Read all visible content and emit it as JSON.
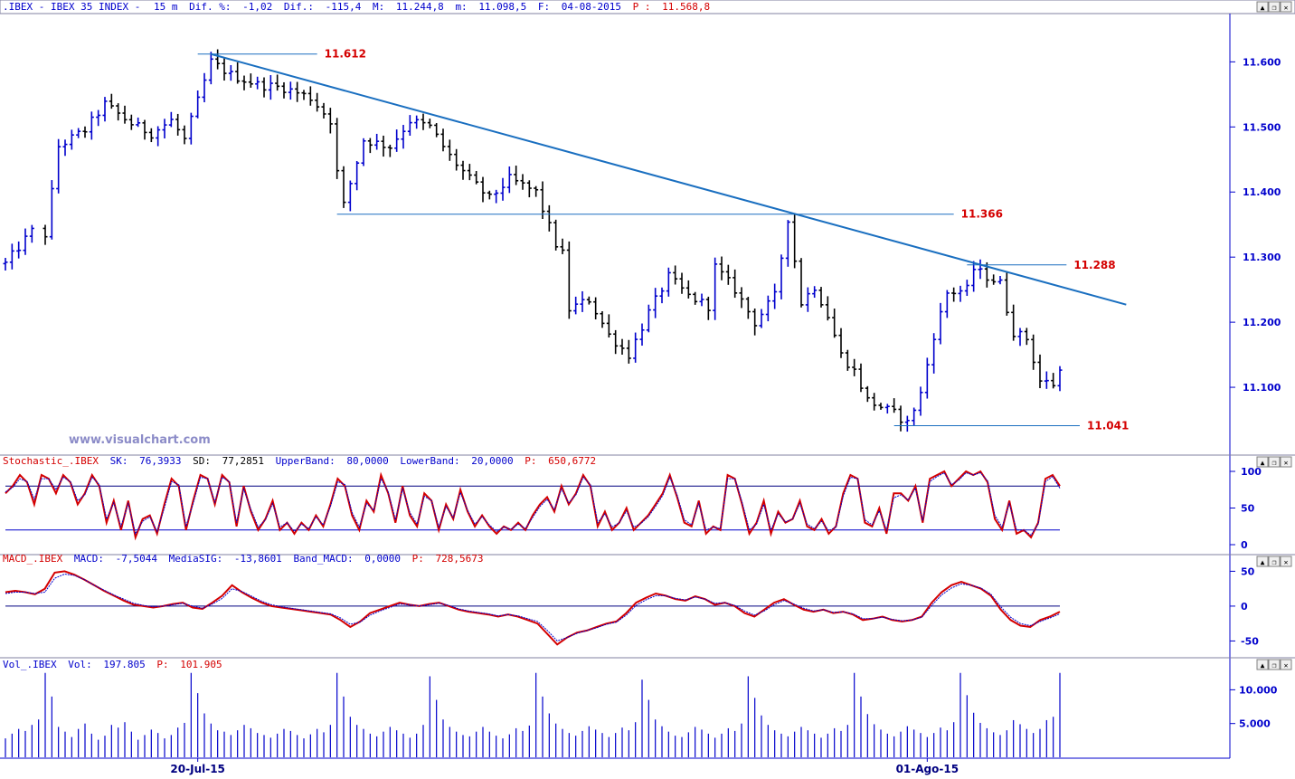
{
  "header": {
    "symbol": ".IBEX",
    "name": "IBEX 35 INDEX",
    "interval": "15 m",
    "change_pct_label": "Dif. %:",
    "change_pct": "-1,02",
    "change_label": "Dif.:",
    "change": "-115,4",
    "max_label": "M:",
    "max": "11.244,8",
    "min_label": "m:",
    "min": "11.098,5",
    "date_label": "F:",
    "date": "04-08-2015",
    "price_label": "P :",
    "price": "11.568,8"
  },
  "window_buttons": {
    "up": "▲",
    "restore": "❐",
    "close": "✕"
  },
  "watermark": "www.visualchart.com",
  "colors": {
    "up_bar": "#0000cc",
    "down_bar": "#000000",
    "trendline": "#1a6fc0",
    "level_line": "#1a6fc0",
    "level_text": "#d40000",
    "axis": "#0000cc",
    "indicator_main": "#d40000",
    "indicator_signal": "#0000cc"
  },
  "chart_data": [
    {
      "type": "ohlc",
      "panel": "price",
      "title": "IBEX 35 INDEX 15 m",
      "ylim": [
        11000,
        11670
      ],
      "yticks": [
        11100,
        11200,
        11300,
        11400,
        11500,
        11600
      ],
      "ytick_labels": [
        "11.100",
        "11.200",
        "11.300",
        "11.400",
        "11.500",
        "11.600"
      ],
      "xtick_labels": [
        "20-Jul-15",
        "01-Ago-15"
      ],
      "xtick_bars": [
        29,
        139
      ],
      "bars_total": 160,
      "levels": [
        {
          "value": 11612,
          "label": "11.612",
          "from_bar": 29,
          "to_bar": 47
        },
        {
          "value": 11366,
          "label": "11.366",
          "from_bar": 50,
          "to_bar": 143
        },
        {
          "value": 11288,
          "label": "11.288",
          "from_bar": 145,
          "to_bar": 160
        },
        {
          "value": 11041,
          "label": "11.041",
          "from_bar": 134,
          "to_bar": 162
        }
      ],
      "trendline": {
        "from": {
          "bar": 31,
          "value": 11612
        },
        "to": {
          "bar": 169,
          "value": 11227
        }
      },
      "close_path": [
        [
          0,
          11290
        ],
        [
          4,
          11340
        ],
        [
          6,
          11335
        ],
        [
          7,
          11400
        ],
        [
          8,
          11470
        ],
        [
          12,
          11495
        ],
        [
          15,
          11535
        ],
        [
          19,
          11505
        ],
        [
          22,
          11490
        ],
        [
          25,
          11510
        ],
        [
          27,
          11480
        ],
        [
          29,
          11540
        ],
        [
          31,
          11600
        ],
        [
          34,
          11580
        ],
        [
          38,
          11565
        ],
        [
          42,
          11560
        ],
        [
          46,
          11545
        ],
        [
          49,
          11510
        ],
        [
          50,
          11430
        ],
        [
          51,
          11380
        ],
        [
          54,
          11480
        ],
        [
          58,
          11470
        ],
        [
          61,
          11510
        ],
        [
          64,
          11500
        ],
        [
          67,
          11455
        ],
        [
          70,
          11420
        ],
        [
          73,
          11390
        ],
        [
          76,
          11420
        ],
        [
          80,
          11400
        ],
        [
          83,
          11320
        ],
        [
          84,
          11305
        ],
        [
          85,
          11220
        ],
        [
          88,
          11235
        ],
        [
          91,
          11180
        ],
        [
          94,
          11150
        ],
        [
          97,
          11215
        ],
        [
          100,
          11270
        ],
        [
          103,
          11240
        ],
        [
          106,
          11225
        ],
        [
          107,
          11285
        ],
        [
          110,
          11250
        ],
        [
          113,
          11200
        ],
        [
          116,
          11240
        ],
        [
          118,
          11360
        ],
        [
          120,
          11230
        ],
        [
          122,
          11255
        ],
        [
          124,
          11210
        ],
        [
          126,
          11150
        ],
        [
          128,
          11125
        ],
        [
          130,
          11080
        ],
        [
          132,
          11070
        ],
        [
          134,
          11060
        ],
        [
          136,
          11045
        ],
        [
          138,
          11090
        ],
        [
          140,
          11180
        ],
        [
          142,
          11245
        ],
        [
          145,
          11250
        ],
        [
          146,
          11282
        ],
        [
          148,
          11270
        ],
        [
          150,
          11260
        ],
        [
          151,
          11220
        ],
        [
          152,
          11185
        ],
        [
          154,
          11175
        ],
        [
          156,
          11110
        ],
        [
          158,
          11105
        ],
        [
          160,
          11145
        ],
        [
          162,
          11150
        ]
      ]
    },
    {
      "type": "line",
      "panel": "stochastic",
      "legend_name": "Stochastic_.IBEX",
      "values_text": [
        {
          "label": "SK:",
          "value": "76,3933"
        },
        {
          "label": "SD:",
          "value": "77,2851"
        },
        {
          "label": "UpperBand:",
          "value": "80,0000"
        },
        {
          "label": "LowerBand:",
          "value": "20,0000"
        },
        {
          "label": "P:",
          "value": "650,6772"
        }
      ],
      "ylim": [
        0,
        100
      ],
      "yticks": [
        0,
        50,
        100
      ],
      "ytick_labels": [
        "0",
        "50",
        "100"
      ],
      "bands": [
        80,
        20
      ],
      "series": [
        {
          "name": "SK",
          "values": [
            70,
            80,
            95,
            85,
            55,
            95,
            90,
            70,
            95,
            85,
            55,
            70,
            95,
            80,
            30,
            60,
            20,
            60,
            10,
            35,
            40,
            15,
            55,
            90,
            80,
            20,
            60,
            95,
            90,
            55,
            95,
            85,
            25,
            80,
            45,
            20,
            35,
            60,
            20,
            30,
            15,
            30,
            20,
            40,
            25,
            55,
            90,
            80,
            40,
            20,
            60,
            45,
            95,
            70,
            30,
            80,
            40,
            25,
            70,
            60,
            20,
            55,
            35,
            75,
            45,
            25,
            40,
            25,
            15,
            25,
            20,
            30,
            20,
            40,
            55,
            65,
            45,
            80,
            55,
            70,
            95,
            80,
            25,
            45,
            20,
            30,
            50,
            20,
            30,
            40,
            55,
            70,
            95,
            65,
            30,
            25,
            60,
            15,
            25,
            20,
            95,
            90,
            55,
            15,
            30,
            60,
            15,
            45,
            30,
            35,
            60,
            25,
            20,
            35,
            15,
            25,
            70,
            95,
            90,
            30,
            25,
            50,
            15,
            70,
            70,
            60,
            80,
            30,
            90,
            95,
            100,
            80,
            90,
            100,
            95,
            100,
            85,
            35,
            20,
            60,
            15,
            20,
            10,
            30,
            90,
            95,
            80
          ]
        },
        {
          "name": "SD",
          "values": [
            72,
            78,
            90,
            86,
            62,
            90,
            90,
            75,
            92,
            86,
            60,
            68,
            92,
            82,
            35,
            57,
            25,
            56,
            15,
            32,
            38,
            18,
            50,
            86,
            82,
            25,
            56,
            92,
            90,
            58,
            92,
            86,
            30,
            76,
            48,
            24,
            34,
            56,
            24,
            30,
            18,
            28,
            22,
            38,
            27,
            52,
            86,
            82,
            44,
            24,
            56,
            47,
            90,
            72,
            34,
            76,
            44,
            28,
            66,
            60,
            24,
            52,
            37,
            71,
            47,
            28,
            38,
            27,
            18,
            24,
            21,
            28,
            22,
            37,
            52,
            62,
            48,
            76,
            57,
            68,
            92,
            82,
            30,
            42,
            24,
            30,
            46,
            24,
            29,
            38,
            52,
            67,
            92,
            68,
            34,
            27,
            56,
            20,
            24,
            22,
            90,
            90,
            58,
            20,
            28,
            55,
            20,
            42,
            31,
            35,
            56,
            28,
            22,
            32,
            19,
            24,
            66,
            92,
            90,
            34,
            27,
            46,
            20,
            64,
            68,
            61,
            77,
            33,
            86,
            93,
            98,
            82,
            88,
            98,
            95,
            98,
            87,
            40,
            24,
            56,
            20,
            20,
            13,
            28,
            86,
            93,
            77
          ]
        }
      ]
    },
    {
      "type": "line",
      "panel": "macd",
      "legend_name": "MACD_.IBEX",
      "values_text": [
        {
          "label": "MACD:",
          "value": "-7,5044"
        },
        {
          "label": "MediaSIG:",
          "value": "-13,8601"
        },
        {
          "label": "Band_MACD:",
          "value": "0,0000"
        },
        {
          "label": "P:",
          "value": "728,5673"
        }
      ],
      "ylim": [
        -65,
        57
      ],
      "yticks": [
        -50,
        0,
        50
      ],
      "ytick_labels": [
        "-50",
        "0",
        "50"
      ],
      "bands": [
        0
      ],
      "series": [
        {
          "name": "MACD",
          "values": [
            20,
            22,
            20,
            17,
            25,
            48,
            50,
            45,
            38,
            30,
            22,
            15,
            8,
            2,
            0,
            -2,
            0,
            3,
            5,
            -2,
            -4,
            5,
            15,
            30,
            20,
            12,
            5,
            0,
            -2,
            -4,
            -6,
            -8,
            -10,
            -12,
            -20,
            -30,
            -22,
            -10,
            -5,
            0,
            5,
            2,
            0,
            3,
            5,
            0,
            -5,
            -8,
            -10,
            -12,
            -15,
            -12,
            -15,
            -20,
            -25,
            -40,
            -55,
            -45,
            -38,
            -35,
            -30,
            -25,
            -22,
            -10,
            5,
            12,
            18,
            15,
            10,
            8,
            14,
            10,
            2,
            5,
            0,
            -10,
            -15,
            -5,
            5,
            10,
            2,
            -5,
            -8,
            -5,
            -10,
            -8,
            -12,
            -20,
            -18,
            -15,
            -20,
            -22,
            -20,
            -15,
            5,
            20,
            30,
            35,
            30,
            25,
            15,
            -5,
            -20,
            -28,
            -30,
            -20,
            -15,
            -8
          ]
        },
        {
          "name": "SIG",
          "values": [
            18,
            20,
            20,
            18,
            20,
            40,
            46,
            44,
            38,
            30,
            23,
            16,
            10,
            4,
            1,
            -1,
            0,
            2,
            4,
            0,
            -3,
            3,
            11,
            25,
            21,
            14,
            7,
            2,
            -1,
            -3,
            -5,
            -7,
            -9,
            -11,
            -17,
            -26,
            -23,
            -13,
            -7,
            -2,
            3,
            2,
            0,
            2,
            4,
            1,
            -4,
            -7,
            -9,
            -11,
            -14,
            -12,
            -14,
            -18,
            -22,
            -35,
            -50,
            -45,
            -39,
            -35,
            -31,
            -26,
            -23,
            -13,
            1,
            9,
            15,
            15,
            11,
            9,
            13,
            10,
            4,
            5,
            1,
            -7,
            -13,
            -7,
            2,
            8,
            3,
            -3,
            -7,
            -5,
            -9,
            -8,
            -11,
            -18,
            -18,
            -16,
            -19,
            -21,
            -20,
            -16,
            1,
            16,
            26,
            32,
            30,
            26,
            17,
            -1,
            -16,
            -25,
            -28,
            -22,
            -17,
            -11
          ]
        }
      ]
    },
    {
      "type": "bar",
      "panel": "volume",
      "legend_name": "Vol_.IBEX",
      "values_text": [
        {
          "label": "Vol:",
          "value": "197.805"
        },
        {
          "label": "P:",
          "value": "101.905"
        }
      ],
      "ylim": [
        0,
        13000
      ],
      "yticks": [
        5000,
        10000
      ],
      "ytick_labels": [
        "5.000",
        "10.000"
      ],
      "values": [
        2800,
        3500,
        4200,
        3900,
        4800,
        5600,
        12500,
        9000,
        4500,
        3800,
        3000,
        4200,
        5000,
        3500,
        2600,
        3200,
        4800,
        4400,
        5200,
        3800,
        2600,
        3300,
        4100,
        3600,
        2800,
        3300,
        4400,
        5100,
        12500,
        9500,
        6500,
        5000,
        4000,
        3800,
        3300,
        4000,
        4800,
        4300,
        3600,
        3300,
        2900,
        3500,
        4200,
        3900,
        3300,
        2800,
        3400,
        4200,
        3700,
        4800,
        12500,
        9000,
        6000,
        4800,
        4200,
        3500,
        3100,
        3800,
        4500,
        4000,
        3500,
        2900,
        3500,
        4800,
        12000,
        8500,
        5600,
        4500,
        3800,
        3300,
        3100,
        3800,
        4500,
        3800,
        3200,
        2800,
        3400,
        4300,
        3900,
        4700,
        12500,
        9000,
        6500,
        5000,
        4200,
        3600,
        3200,
        3900,
        4600,
        4100,
        3600,
        3000,
        3600,
        4400,
        4000,
        5200,
        11500,
        8500,
        5600,
        4600,
        3800,
        3200,
        3000,
        3700,
        4500,
        4100,
        3500,
        2900,
        3500,
        4300,
        3900,
        5000,
        12000,
        8800,
        6200,
        4800,
        4000,
        3500,
        3100,
        3800,
        4500,
        4000,
        3500,
        2900,
        3500,
        4300,
        3900,
        4800,
        12500,
        9000,
        6400,
        4900,
        4100,
        3500,
        3100,
        3800,
        4600,
        4100,
        3600,
        3000,
        3600,
        4400,
        4000,
        5200,
        12500,
        9200,
        6600,
        5100,
        4300,
        3700,
        3300,
        4000,
        5500,
        4900,
        4200,
        3600,
        4200,
        5500,
        6000,
        12500
      ]
    }
  ]
}
